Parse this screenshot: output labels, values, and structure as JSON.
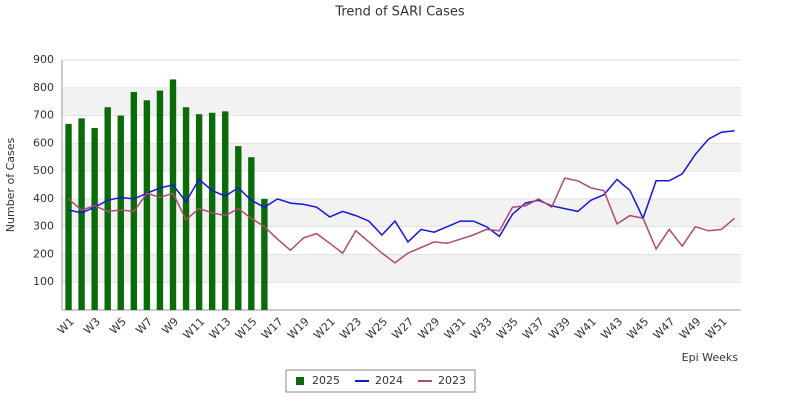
{
  "chart_data": {
    "type": "bar-line",
    "title": "Trend of SARI Cases",
    "y_label": "Number of Cases",
    "x_label": "Epi Weeks",
    "categories": [
      "W1",
      null,
      "W3",
      null,
      "W5",
      null,
      "W7",
      null,
      "W9",
      null,
      "W11",
      null,
      "W13",
      null,
      "W15",
      null,
      "W17",
      null,
      "W19",
      null,
      "W21",
      null,
      "W23",
      null,
      "W25",
      null,
      "W27",
      null,
      "W29",
      null,
      "W31",
      null,
      "W33",
      null,
      "W35",
      null,
      "W37",
      null,
      "W39",
      null,
      "W41",
      null,
      "W43",
      null,
      "W45",
      null,
      "W47",
      null,
      "W49",
      null,
      "W51",
      null
    ],
    "series": [
      {
        "name": "2025",
        "type": "bar",
        "color": "#0b6b0b",
        "values": [
          670,
          690,
          655,
          730,
          700,
          785,
          755,
          790,
          830,
          730,
          705,
          710,
          715,
          590,
          550,
          400,
          null,
          null,
          null,
          null,
          null,
          null,
          null,
          null,
          null,
          null,
          null,
          null,
          null,
          null,
          null,
          null,
          null,
          null,
          null,
          null,
          null,
          null,
          null,
          null,
          null,
          null,
          null,
          null,
          null,
          null,
          null,
          null,
          null,
          null,
          null,
          null
        ]
      },
      {
        "name": "2024",
        "type": "line",
        "color": "#1515e0",
        "values": [
          360,
          350,
          370,
          395,
          405,
          400,
          420,
          440,
          450,
          390,
          470,
          430,
          410,
          440,
          395,
          370,
          400,
          385,
          380,
          370,
          335,
          355,
          340,
          320,
          270,
          320,
          245,
          290,
          280,
          300,
          320,
          320,
          300,
          265,
          345,
          385,
          395,
          375,
          365,
          355,
          395,
          415,
          470,
          430,
          330,
          465,
          465,
          490,
          560,
          615,
          640,
          645
        ]
      },
      {
        "name": "2023",
        "type": "line",
        "color": "#b04a6e",
        "values": [
          400,
          360,
          375,
          355,
          360,
          355,
          420,
          405,
          420,
          325,
          365,
          350,
          340,
          365,
          330,
          300,
          255,
          215,
          260,
          275,
          240,
          205,
          285,
          245,
          205,
          170,
          205,
          225,
          245,
          240,
          255,
          270,
          290,
          285,
          370,
          375,
          400,
          370,
          475,
          465,
          440,
          430,
          310,
          340,
          330,
          220,
          290,
          230,
          300,
          285,
          290,
          330
        ]
      }
    ],
    "ylim": [
      0,
      900
    ],
    "yticks": [
      100,
      200,
      300,
      400,
      500,
      600,
      700,
      800,
      900
    ],
    "grid": true,
    "legend": "bottom"
  }
}
